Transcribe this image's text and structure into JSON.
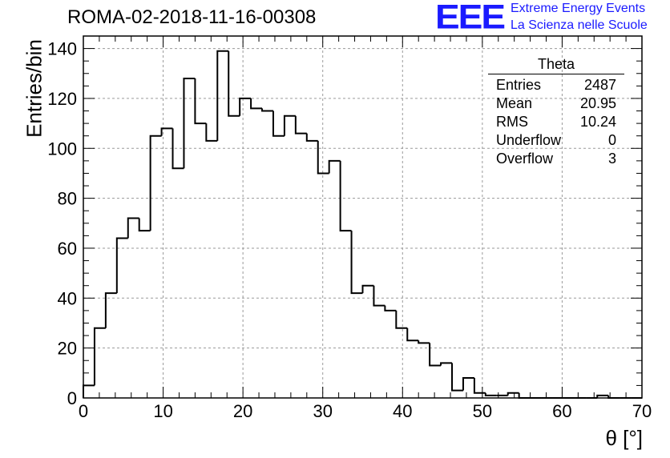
{
  "title": "ROMA-02-2018-11-16-00308",
  "logo": {
    "mark": "EEE",
    "line1": "Extreme Energy Events",
    "line2": "La Scienza nelle Scuole",
    "color": "#1a1aff"
  },
  "stats_box": {
    "name": "Theta",
    "rows": [
      {
        "label": "Entries",
        "value": "2487"
      },
      {
        "label": "Mean",
        "value": "20.95"
      },
      {
        "label": "RMS",
        "value": "10.24"
      },
      {
        "label": "Underflow",
        "value": "0"
      },
      {
        "label": "Overflow",
        "value": "3"
      }
    ]
  },
  "chart_data": {
    "type": "bar",
    "title": "ROMA-02-2018-11-16-00308",
    "xlabel": "θ [°]",
    "ylabel": "Entries/bin",
    "xlim": [
      0,
      70
    ],
    "ylim": [
      0,
      145
    ],
    "grid": true,
    "bin_width": 1.4,
    "xticks": [
      0,
      10,
      20,
      30,
      40,
      50,
      60,
      70
    ],
    "yticks": [
      0,
      20,
      40,
      60,
      80,
      100,
      120,
      140
    ],
    "values": [
      5,
      28,
      42,
      64,
      72,
      67,
      105,
      108,
      92,
      128,
      110,
      103,
      139,
      113,
      120,
      116,
      115,
      105,
      113,
      106,
      103,
      90,
      95,
      67,
      42,
      45,
      37,
      35,
      28,
      23,
      22,
      13,
      14,
      3,
      8,
      2,
      1,
      1,
      2,
      0,
      0,
      0,
      0,
      0,
      0,
      0,
      1,
      0,
      0,
      0
    ]
  }
}
